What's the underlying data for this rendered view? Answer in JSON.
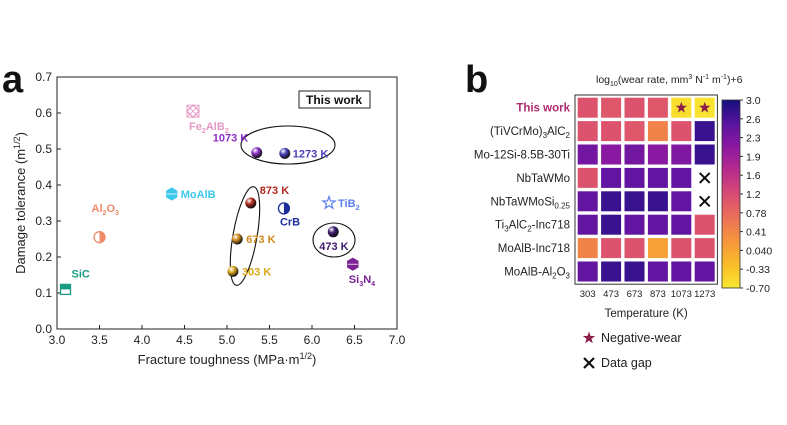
{
  "panel_a": {
    "panel_label": "a",
    "chart_data": {
      "type": "scatter",
      "xlabel": "Fracture toughness (MPa·m",
      "xlabel_sup": "1/2",
      "xlabel_close": ")",
      "ylabel": "Damage tolerance (m",
      "ylabel_sup": "1/2",
      "ylabel_close": ")",
      "xlim": [
        3.0,
        7.0
      ],
      "ylim": [
        0.0,
        0.7
      ],
      "xticks": [
        "3.0",
        "3.5",
        "4.0",
        "4.5",
        "5.0",
        "5.5",
        "6.0",
        "6.5",
        "7.0"
      ],
      "yticks": [
        "0.0",
        "0.1",
        "0.2",
        "0.3",
        "0.4",
        "0.5",
        "0.6",
        "0.7"
      ],
      "legend_box": "This work",
      "points": [
        {
          "label": "SiC",
          "x": 3.1,
          "y": 0.11,
          "color": "#1a9c82",
          "marker": "square-half"
        },
        {
          "label": "Al",
          "sub": "2",
          "mid": "O",
          "sub2": "3",
          "x": 3.5,
          "y": 0.255,
          "color": "#f08a6a",
          "marker": "circle-half"
        },
        {
          "label": "MoAlB",
          "x": 4.35,
          "y": 0.375,
          "color": "#3cc8ea",
          "marker": "hexagon"
        },
        {
          "label": "Fe",
          "sub": "2",
          "mid": "AlB",
          "sub2": "2",
          "x": 4.6,
          "y": 0.605,
          "color": "#e59ac6",
          "marker": "diamond-hatch"
        },
        {
          "label": "CrB",
          "x": 5.67,
          "y": 0.335,
          "color": "#1d2d9c",
          "marker": "circle-half"
        },
        {
          "label": "TiB",
          "sub": "2",
          "x": 6.2,
          "y": 0.35,
          "color": "#5d7ef0",
          "marker": "star"
        },
        {
          "label": "Si",
          "sub": "3",
          "mid": "N",
          "sub2": "4",
          "x": 6.48,
          "y": 0.18,
          "color": "#7b2194",
          "marker": "hexagon"
        },
        {
          "label": "303 K",
          "x": 5.07,
          "y": 0.16,
          "color": "#d9a51a",
          "marker": "sphere",
          "this_work": true
        },
        {
          "label": "673 K",
          "x": 5.12,
          "y": 0.25,
          "color": "#d08a1e",
          "marker": "sphere",
          "this_work": true
        },
        {
          "label": "873 K",
          "x": 5.28,
          "y": 0.35,
          "color": "#b2281c",
          "marker": "sphere",
          "this_work": true
        },
        {
          "label": "1073 K",
          "x": 5.35,
          "y": 0.49,
          "color": "#8a2fc4",
          "marker": "sphere",
          "this_work": true
        },
        {
          "label": "1273 K",
          "x": 5.68,
          "y": 0.488,
          "color": "#4a3fb8",
          "marker": "sphere",
          "this_work": true
        },
        {
          "label": "473 K",
          "x": 6.25,
          "y": 0.27,
          "color": "#3d1a6e",
          "marker": "sphere",
          "this_work": true
        }
      ]
    }
  },
  "panel_b": {
    "panel_label": "b",
    "chart_data": {
      "type": "heatmap",
      "colorbar_title": "log",
      "colorbar_title_sub": "10",
      "colorbar_title_rest": "(wear rate, mm",
      "colorbar_title_sup1": "3",
      "colorbar_title_mid": " N",
      "colorbar_title_sup2": "-1",
      "colorbar_title_mid2": " m",
      "colorbar_title_sup3": "-1",
      "colorbar_title_end": ")+6",
      "xlabel": "Temperature (K)",
      "columns": [
        "303",
        "473",
        "673",
        "873",
        "1073",
        "1273"
      ],
      "rows": [
        {
          "label": "This work",
          "highlight": true
        },
        {
          "label": "(TiVCrMo)",
          "sub": "3",
          "rest": "AlC",
          "sub2": "2"
        },
        {
          "label": "Mo-12Si-8.5B-30Ti"
        },
        {
          "label": "NbTaWMo"
        },
        {
          "label": "NbTaWMoSi",
          "sub": "0.25"
        },
        {
          "label": "Ti",
          "sub": "3",
          "rest": "AlC",
          "sub2": "2",
          "rest2": "-Inc718"
        },
        {
          "label": "MoAlB-Inc718"
        },
        {
          "label": "MoAlB-Al",
          "sub": "2",
          "rest": "O",
          "sub2": "3"
        }
      ],
      "values": [
        [
          1.05,
          1.0,
          1.05,
          1.0,
          -0.6,
          -0.65
        ],
        [
          1.05,
          1.05,
          1.0,
          0.45,
          1.05,
          2.75
        ],
        [
          2.3,
          2.1,
          2.3,
          2.1,
          2.2,
          2.75
        ],
        [
          1.05,
          2.45,
          2.45,
          2.45,
          2.45,
          null
        ],
        [
          2.45,
          2.75,
          2.75,
          2.75,
          2.45,
          null
        ],
        [
          2.45,
          2.75,
          2.45,
          2.45,
          2.45,
          1.05
        ],
        [
          0.45,
          1.05,
          1.05,
          0.1,
          1.05,
          1.05
        ],
        [
          2.45,
          2.75,
          2.75,
          2.45,
          2.45,
          2.45
        ]
      ],
      "negative_wear_cells": [
        [
          0,
          4
        ],
        [
          0,
          5
        ]
      ],
      "colorbar_ticks": [
        "3.0",
        "2.6",
        "2.3",
        "1.9",
        "1.6",
        "1.2",
        "0.78",
        "0.41",
        "0.040",
        "-0.33",
        "-0.70"
      ],
      "vmin": -0.7,
      "vmax": 3.0,
      "legend": [
        {
          "symbol": "★",
          "label": "Negative-wear",
          "color": "#8c1f4a"
        },
        {
          "symbol": "✕",
          "label": "Data gap",
          "color": "#111111"
        }
      ]
    }
  }
}
